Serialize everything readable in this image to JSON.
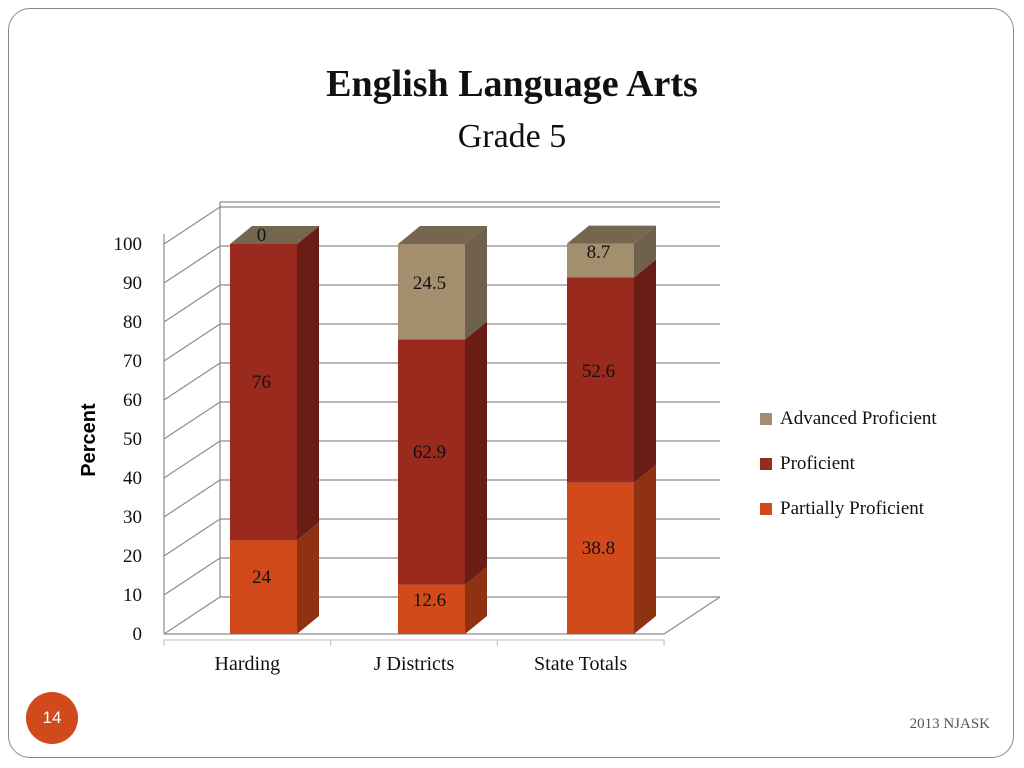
{
  "slide": {
    "page_number": "14",
    "footer": "2013 NJASK"
  },
  "colors": {
    "advanced": "#a38f6e",
    "proficient": "#9b2a1e",
    "partial": "#d24a1a",
    "gridline": "#8c8c8c",
    "page_badge": "#d04a1c"
  },
  "chart_data": {
    "type": "bar",
    "stacked": true,
    "three_d": true,
    "title": "English Language Arts",
    "subtitle": "Grade 5",
    "xlabel": "",
    "ylabel": "Percent",
    "ylim": [
      0,
      100
    ],
    "yticks": [
      0,
      10,
      20,
      30,
      40,
      50,
      60,
      70,
      80,
      90,
      100
    ],
    "categories": [
      "Harding",
      "J Districts",
      "State Totals"
    ],
    "series": [
      {
        "name": "Partially Proficient",
        "color": "#d24a1a",
        "values": [
          24,
          12.6,
          38.8
        ],
        "labels": [
          "24",
          "12.6",
          "38.8"
        ]
      },
      {
        "name": "Proficient",
        "color": "#9b2a1e",
        "values": [
          76,
          62.9,
          52.6
        ],
        "labels": [
          "76",
          "62.9",
          "52.6"
        ]
      },
      {
        "name": "Advanced Proficient",
        "color": "#a38f6e",
        "values": [
          0,
          24.5,
          8.7
        ],
        "labels": [
          "0",
          "24.5",
          "8.7"
        ]
      }
    ],
    "legend": {
      "placement": "right",
      "order": [
        "Advanced Proficient",
        "Proficient",
        "Partially Proficient"
      ]
    },
    "grid": true
  }
}
